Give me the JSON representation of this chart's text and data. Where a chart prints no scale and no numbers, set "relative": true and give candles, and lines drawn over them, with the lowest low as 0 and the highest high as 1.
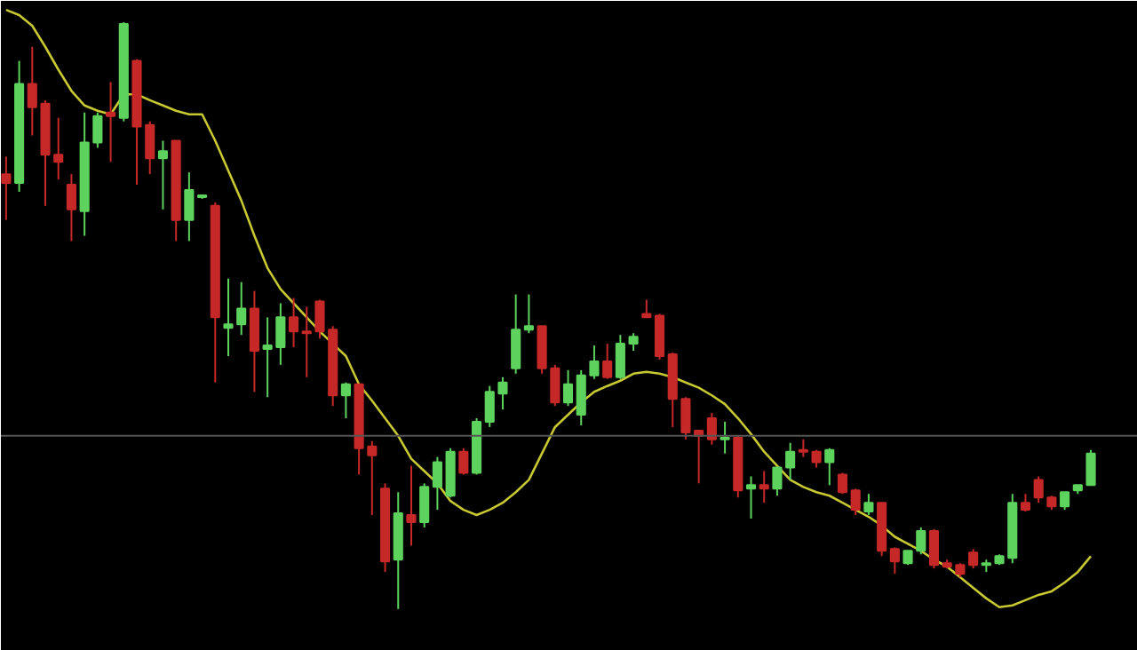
{
  "chart_data": {
    "type": "candlestick",
    "relative": true,
    "categories": [
      null,
      null,
      null,
      null,
      null,
      null,
      null,
      null,
      null,
      null,
      null,
      null,
      null,
      null,
      null,
      null,
      null,
      null,
      null,
      null,
      null,
      null,
      null,
      null,
      null,
      null,
      null,
      null,
      null,
      null,
      null,
      null,
      null,
      null,
      null,
      null,
      null,
      null,
      null,
      null,
      null,
      null,
      null,
      null,
      null,
      null,
      null,
      null,
      null,
      null,
      null,
      null,
      null,
      null,
      null,
      null,
      null,
      null,
      null,
      null,
      null,
      null,
      null,
      null,
      null,
      null,
      null,
      null,
      null,
      null,
      null,
      null,
      null,
      null,
      null,
      null,
      null,
      null,
      null,
      null,
      null,
      null,
      null,
      null
    ],
    "ohlc": [
      [
        0.741,
        0.771,
        0.663,
        0.726
      ],
      [
        0.726,
        0.934,
        0.711,
        0.895
      ],
      [
        0.895,
        0.958,
        0.807,
        0.855
      ],
      [
        0.861,
        0.867,
        0.687,
        0.774
      ],
      [
        0.774,
        0.837,
        0.732,
        0.762
      ],
      [
        0.723,
        0.741,
        0.627,
        0.681
      ],
      [
        0.678,
        0.846,
        0.636,
        0.795
      ],
      [
        0.795,
        0.846,
        0.786,
        0.84
      ],
      [
        0.846,
        0.898,
        0.762,
        0.84
      ],
      [
        0.837,
        1.0,
        0.831,
        0.997
      ],
      [
        0.934,
        0.937,
        0.723,
        0.822
      ],
      [
        0.825,
        0.831,
        0.741,
        0.768
      ],
      [
        0.768,
        0.798,
        0.681,
        0.78
      ],
      [
        0.798,
        0.798,
        0.627,
        0.663
      ],
      [
        0.663,
        0.744,
        0.627,
        0.714
      ],
      [
        0.702,
        0.705,
        0.699,
        0.705
      ],
      [
        0.687,
        0.693,
        0.386,
        0.497
      ],
      [
        0.479,
        0.563,
        0.431,
        0.485
      ],
      [
        0.485,
        0.557,
        0.467,
        0.512
      ],
      [
        0.512,
        0.542,
        0.37,
        0.44
      ],
      [
        0.443,
        0.497,
        0.361,
        0.449
      ],
      [
        0.446,
        0.521,
        0.416,
        0.497
      ],
      [
        0.497,
        0.53,
        0.446,
        0.473
      ],
      [
        0.473,
        0.515,
        0.395,
        0.47
      ],
      [
        0.524,
        0.527,
        0.461,
        0.473
      ],
      [
        0.476,
        0.482,
        0.346,
        0.364
      ],
      [
        0.364,
        0.386,
        0.325,
        0.383
      ],
      [
        0.383,
        0.383,
        0.229,
        0.274
      ],
      [
        0.277,
        0.286,
        0.16,
        0.262
      ],
      [
        0.205,
        0.214,
        0.063,
        0.081
      ],
      [
        0.084,
        0.199,
        0.0,
        0.163
      ],
      [
        0.16,
        0.244,
        0.108,
        0.148
      ],
      [
        0.148,
        0.214,
        0.139,
        0.208
      ],
      [
        0.208,
        0.259,
        0.169,
        0.25
      ],
      [
        0.193,
        0.274,
        0.19,
        0.268
      ],
      [
        0.268,
        0.274,
        0.229,
        0.232
      ],
      [
        0.232,
        0.325,
        0.229,
        0.319
      ],
      [
        0.319,
        0.38,
        0.31,
        0.37
      ],
      [
        0.367,
        0.395,
        0.34,
        0.386
      ],
      [
        0.41,
        0.536,
        0.401,
        0.476
      ],
      [
        0.476,
        0.536,
        0.47,
        0.482
      ],
      [
        0.482,
        0.482,
        0.401,
        0.41
      ],
      [
        0.41,
        0.416,
        0.346,
        0.352
      ],
      [
        0.352,
        0.407,
        0.346,
        0.383
      ],
      [
        0.331,
        0.407,
        0.313,
        0.398
      ],
      [
        0.398,
        0.449,
        0.392,
        0.422
      ],
      [
        0.422,
        0.452,
        0.392,
        0.395
      ],
      [
        0.395,
        0.467,
        0.392,
        0.452
      ],
      [
        0.452,
        0.47,
        0.44,
        0.464
      ],
      [
        0.503,
        0.527,
        0.497,
        0.497
      ],
      [
        0.5,
        0.503,
        0.425,
        0.431
      ],
      [
        0.434,
        0.437,
        0.31,
        0.358
      ],
      [
        0.358,
        0.361,
        0.289,
        0.301
      ],
      [
        0.304,
        0.304,
        0.214,
        0.295
      ],
      [
        0.325,
        0.334,
        0.28,
        0.289
      ],
      [
        0.289,
        0.319,
        0.265,
        0.292
      ],
      [
        0.292,
        0.295,
        0.19,
        0.202
      ],
      [
        0.205,
        0.226,
        0.154,
        0.211
      ],
      [
        0.211,
        0.235,
        0.181,
        0.205
      ],
      [
        0.205,
        0.241,
        0.193,
        0.241
      ],
      [
        0.241,
        0.283,
        0.22,
        0.268
      ],
      [
        0.271,
        0.289,
        0.259,
        0.268
      ],
      [
        0.268,
        0.271,
        0.241,
        0.25
      ],
      [
        0.25,
        0.274,
        0.211,
        0.271
      ],
      [
        0.229,
        0.232,
        0.196,
        0.199
      ],
      [
        0.202,
        0.205,
        0.16,
        0.169
      ],
      [
        0.166,
        0.196,
        0.16,
        0.181
      ],
      [
        0.181,
        0.181,
        0.09,
        0.099
      ],
      [
        0.102,
        0.105,
        0.06,
        0.081
      ],
      [
        0.078,
        0.099,
        0.075,
        0.099
      ],
      [
        0.099,
        0.139,
        0.093,
        0.133
      ],
      [
        0.133,
        0.136,
        0.069,
        0.075
      ],
      [
        0.078,
        0.084,
        0.069,
        0.072
      ],
      [
        0.075,
        0.078,
        0.054,
        0.06
      ],
      [
        0.096,
        0.102,
        0.069,
        0.075
      ],
      [
        0.075,
        0.084,
        0.063,
        0.078
      ],
      [
        0.078,
        0.093,
        0.075,
        0.09
      ],
      [
        0.087,
        0.196,
        0.078,
        0.181
      ],
      [
        0.181,
        0.196,
        0.166,
        0.169
      ],
      [
        0.22,
        0.226,
        0.181,
        0.19
      ],
      [
        0.19,
        0.193,
        0.169,
        0.175
      ],
      [
        0.175,
        0.199,
        0.169,
        0.199
      ],
      [
        0.202,
        0.211,
        0.196,
        0.211
      ],
      [
        0.211,
        0.271,
        0.211,
        0.265
      ]
    ],
    "series": [
      {
        "type": "line",
        "color": "#c8c832",
        "values": [
          1.021,
          1.012,
          0.994,
          0.958,
          0.919,
          0.883,
          0.858,
          0.849,
          0.843,
          0.877,
          0.877,
          0.867,
          0.858,
          0.849,
          0.843,
          0.843,
          0.798,
          0.747,
          0.696,
          0.636,
          0.581,
          0.545,
          0.521,
          0.497,
          0.473,
          0.452,
          0.431,
          0.383,
          0.355,
          0.325,
          0.295,
          0.256,
          0.235,
          0.214,
          0.184,
          0.169,
          0.16,
          0.169,
          0.181,
          0.199,
          0.22,
          0.265,
          0.31,
          0.331,
          0.352,
          0.37,
          0.38,
          0.389,
          0.401,
          0.404,
          0.401,
          0.395,
          0.386,
          0.377,
          0.364,
          0.349,
          0.325,
          0.298,
          0.268,
          0.244,
          0.22,
          0.208,
          0.199,
          0.193,
          0.181,
          0.169,
          0.157,
          0.142,
          0.123,
          0.111,
          0.099,
          0.084,
          0.072,
          0.054,
          0.036,
          0.018,
          0.003,
          0.006,
          0.015,
          0.024,
          0.03,
          0.045,
          0.063,
          0.09
        ]
      }
    ],
    "ref_lines": [
      {
        "axis": "y",
        "value": 0.295,
        "color": "#555555"
      }
    ]
  }
}
